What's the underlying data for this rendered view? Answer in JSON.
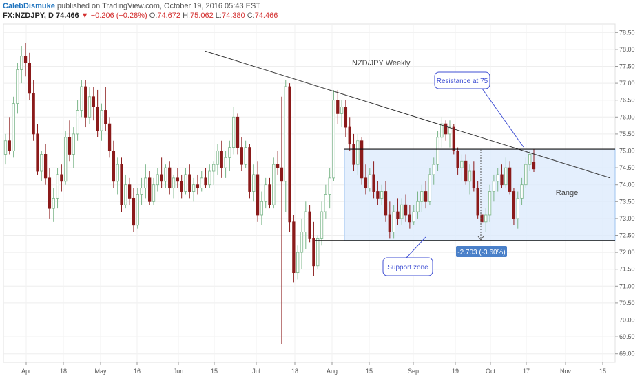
{
  "header": {
    "author": "CalebDismuke",
    "published": "published on TradingView.com, October 19, 2016 05:43 EST",
    "symbol": "FX:NZDJPY, D",
    "last": "74.466",
    "change": "−0.206 (−0.28%)",
    "open_label": "O:",
    "open": "74.672",
    "high_label": "H:",
    "high": "75.062",
    "low_label": "L:",
    "low": "74.380",
    "close_label": "C:",
    "close": "74.466"
  },
  "chart_data": {
    "type": "candlestick",
    "title": "NZD/JPY Weekly",
    "ylim": [
      68.75,
      78.75
    ],
    "y_ticks": [
      69.0,
      69.5,
      70.0,
      70.5,
      71.0,
      71.5,
      72.0,
      72.5,
      73.0,
      73.5,
      74.0,
      74.5,
      75.0,
      75.5,
      76.0,
      76.5,
      77.0,
      77.5,
      78.0,
      78.5
    ],
    "x_ticks": [
      "Apr",
      "18",
      "May",
      "16",
      "Jun",
      "15",
      "Jul",
      "18",
      "Aug",
      "15",
      "Sep",
      "19",
      "Oct",
      "17",
      "Nov",
      "15"
    ],
    "up_color": "#a5d6a7",
    "down_color": "#8b1a1a",
    "candles": [
      [
        74.9,
        75.5,
        74.6,
        75.3
      ],
      [
        75.3,
        76.0,
        74.9,
        75.0
      ],
      [
        75.0,
        76.6,
        74.8,
        76.4
      ],
      [
        76.4,
        77.6,
        76.1,
        77.4
      ],
      [
        77.4,
        78.1,
        77.0,
        77.8
      ],
      [
        77.8,
        78.2,
        77.2,
        77.6
      ],
      [
        77.6,
        77.9,
        76.5,
        76.7
      ],
      [
        76.7,
        77.1,
        75.3,
        75.5
      ],
      [
        75.5,
        75.8,
        74.3,
        74.4
      ],
      [
        74.4,
        75.0,
        74.1,
        74.9
      ],
      [
        74.9,
        75.2,
        74.0,
        74.2
      ],
      [
        74.2,
        74.5,
        73.0,
        73.3
      ],
      [
        73.3,
        73.9,
        72.9,
        73.6
      ],
      [
        73.6,
        74.5,
        73.3,
        74.3
      ],
      [
        74.3,
        74.6,
        73.8,
        74.1
      ],
      [
        74.1,
        75.6,
        74.0,
        75.4
      ],
      [
        75.4,
        75.9,
        74.7,
        74.9
      ],
      [
        74.9,
        75.7,
        74.5,
        75.5
      ],
      [
        75.5,
        76.5,
        75.3,
        76.2
      ],
      [
        76.2,
        77.1,
        76.0,
        76.9
      ],
      [
        76.9,
        77.1,
        75.7,
        76.0
      ],
      [
        76.0,
        76.9,
        75.8,
        76.6
      ],
      [
        76.6,
        76.9,
        75.9,
        76.3
      ],
      [
        76.3,
        76.8,
        75.4,
        75.6
      ],
      [
        75.6,
        76.4,
        75.3,
        76.2
      ],
      [
        76.2,
        76.9,
        75.6,
        75.8
      ],
      [
        75.8,
        76.0,
        74.8,
        75.0
      ],
      [
        75.0,
        75.3,
        73.9,
        74.1
      ],
      [
        74.1,
        74.8,
        73.7,
        74.6
      ],
      [
        74.6,
        74.8,
        73.2,
        73.4
      ],
      [
        73.4,
        74.3,
        73.3,
        74.0
      ],
      [
        74.0,
        74.2,
        73.4,
        73.6
      ],
      [
        73.6,
        73.9,
        72.6,
        72.8
      ],
      [
        72.8,
        73.9,
        72.7,
        73.7
      ],
      [
        73.7,
        74.2,
        73.4,
        73.9
      ],
      [
        73.9,
        74.6,
        73.6,
        74.2
      ],
      [
        74.2,
        74.4,
        73.4,
        73.5
      ],
      [
        73.5,
        74.2,
        73.4,
        74.0
      ],
      [
        74.0,
        74.5,
        73.8,
        74.3
      ],
      [
        74.3,
        74.8,
        73.9,
        74.1
      ],
      [
        74.1,
        74.6,
        73.9,
        74.5
      ],
      [
        74.5,
        74.7,
        73.7,
        73.9
      ],
      [
        73.9,
        74.3,
        73.6,
        74.2
      ],
      [
        74.2,
        74.5,
        73.9,
        74.1
      ],
      [
        74.1,
        74.3,
        73.6,
        73.8
      ],
      [
        73.8,
        74.5,
        73.7,
        74.3
      ],
      [
        74.3,
        74.6,
        73.6,
        73.8
      ],
      [
        73.8,
        74.2,
        73.5,
        74.0
      ],
      [
        74.0,
        74.3,
        73.7,
        73.9
      ],
      [
        73.9,
        74.4,
        73.8,
        74.2
      ],
      [
        74.2,
        74.5,
        73.9,
        74.0
      ],
      [
        74.0,
        74.6,
        73.9,
        74.4
      ],
      [
        74.4,
        74.7,
        74.0,
        74.6
      ],
      [
        74.6,
        75.2,
        74.3,
        75.0
      ],
      [
        75.0,
        75.3,
        74.2,
        74.5
      ],
      [
        74.5,
        75.0,
        74.2,
        74.8
      ],
      [
        74.8,
        75.3,
        74.4,
        75.1
      ],
      [
        75.1,
        76.3,
        74.9,
        76.0
      ],
      [
        76.0,
        76.1,
        74.9,
        75.1
      ],
      [
        75.1,
        75.4,
        74.4,
        74.6
      ],
      [
        74.6,
        75.3,
        74.5,
        75.1
      ],
      [
        75.1,
        75.2,
        73.6,
        73.8
      ],
      [
        73.8,
        74.6,
        73.5,
        74.3
      ],
      [
        74.3,
        74.7,
        72.9,
        73.1
      ],
      [
        73.1,
        73.8,
        72.8,
        73.5
      ],
      [
        73.5,
        74.2,
        73.3,
        74.0
      ],
      [
        74.0,
        74.2,
        73.3,
        73.4
      ],
      [
        73.4,
        74.8,
        73.3,
        74.6
      ],
      [
        74.6,
        75.0,
        74.3,
        74.5
      ],
      [
        74.5,
        76.6,
        69.3,
        74.1
      ],
      [
        74.1,
        77.1,
        73.2,
        76.9
      ],
      [
        76.9,
        77.0,
        72.6,
        72.9
      ],
      [
        72.9,
        73.1,
        71.1,
        71.4
      ],
      [
        71.4,
        72.2,
        71.2,
        72.0
      ],
      [
        72.0,
        73.0,
        71.5,
        72.6
      ],
      [
        72.6,
        73.5,
        72.1,
        73.2
      ],
      [
        73.2,
        73.4,
        72.3,
        72.4
      ],
      [
        72.4,
        72.9,
        71.3,
        71.6
      ],
      [
        71.6,
        72.5,
        71.5,
        72.4
      ],
      [
        72.4,
        73.5,
        72.2,
        73.2
      ],
      [
        73.2,
        74.0,
        73.0,
        73.7
      ],
      [
        73.7,
        74.5,
        73.3,
        74.2
      ],
      [
        74.2,
        76.8,
        74.1,
        76.5
      ],
      [
        76.5,
        76.8,
        75.8,
        76.1
      ],
      [
        76.1,
        76.5,
        75.7,
        76.3
      ],
      [
        76.3,
        76.5,
        75.4,
        75.7
      ],
      [
        75.7,
        76.0,
        75.0,
        75.2
      ],
      [
        75.2,
        75.5,
        74.4,
        74.6
      ],
      [
        74.6,
        75.5,
        74.3,
        75.3
      ],
      [
        75.3,
        75.4,
        74.0,
        74.2
      ],
      [
        74.2,
        74.6,
        73.7,
        73.9
      ],
      [
        73.9,
        74.5,
        73.8,
        74.3
      ],
      [
        74.3,
        74.7,
        73.6,
        73.8
      ],
      [
        73.8,
        74.1,
        73.4,
        73.6
      ],
      [
        73.6,
        74.0,
        73.4,
        73.8
      ],
      [
        73.8,
        74.1,
        72.9,
        73.1
      ],
      [
        73.1,
        73.5,
        72.4,
        72.6
      ],
      [
        72.6,
        73.4,
        72.4,
        73.2
      ],
      [
        73.2,
        73.6,
        72.8,
        73.0
      ],
      [
        73.0,
        73.6,
        72.8,
        73.4
      ],
      [
        73.4,
        73.7,
        72.9,
        73.1
      ],
      [
        73.1,
        73.4,
        72.7,
        72.9
      ],
      [
        72.9,
        73.4,
        72.8,
        73.2
      ],
      [
        73.2,
        73.8,
        73.0,
        73.5
      ],
      [
        73.5,
        74.0,
        73.2,
        73.8
      ],
      [
        73.8,
        74.1,
        73.3,
        73.5
      ],
      [
        73.5,
        74.5,
        73.4,
        74.3
      ],
      [
        74.3,
        74.8,
        74.0,
        74.6
      ],
      [
        74.6,
        75.6,
        74.4,
        75.4
      ],
      [
        75.4,
        76.0,
        75.1,
        75.8
      ],
      [
        75.8,
        75.9,
        75.3,
        75.5
      ],
      [
        75.5,
        75.9,
        75.1,
        75.7
      ],
      [
        75.7,
        75.8,
        74.9,
        75.0
      ],
      [
        75.0,
        75.1,
        74.3,
        74.5
      ],
      [
        74.5,
        74.9,
        74.1,
        74.7
      ],
      [
        74.7,
        74.9,
        74.0,
        74.1
      ],
      [
        74.1,
        74.6,
        73.7,
        74.4
      ],
      [
        74.4,
        74.7,
        73.8,
        73.9
      ],
      [
        73.9,
        74.1,
        73.0,
        73.1
      ],
      [
        73.1,
        73.5,
        72.7,
        72.9
      ],
      [
        72.9,
        73.3,
        72.6,
        73.1
      ],
      [
        73.1,
        74.0,
        72.9,
        73.8
      ],
      [
        73.8,
        74.3,
        73.5,
        74.1
      ],
      [
        74.1,
        74.5,
        73.8,
        74.3
      ],
      [
        74.3,
        74.6,
        73.9,
        74.0
      ],
      [
        74.0,
        74.8,
        73.9,
        74.5
      ],
      [
        74.5,
        74.7,
        73.7,
        73.8
      ],
      [
        73.8,
        73.9,
        72.8,
        73.0
      ],
      [
        73.0,
        73.8,
        72.7,
        73.6
      ],
      [
        73.6,
        74.2,
        73.4,
        74.0
      ],
      [
        74.0,
        74.8,
        73.9,
        74.6
      ],
      [
        74.6,
        75.0,
        74.4,
        74.9
      ],
      [
        74.672,
        75.062,
        74.38,
        74.466
      ]
    ],
    "trendline": {
      "from": [
        77.95,
        0
      ],
      "to": [
        74.2,
        1
      ]
    },
    "range": {
      "top": 75.05,
      "bottom": 72.35
    },
    "measure": {
      "text": "-2.703 (-3.60%)"
    },
    "annotations": {
      "resistance": "Resistance at 75",
      "support": "Support zone",
      "range_label": "Range"
    }
  }
}
